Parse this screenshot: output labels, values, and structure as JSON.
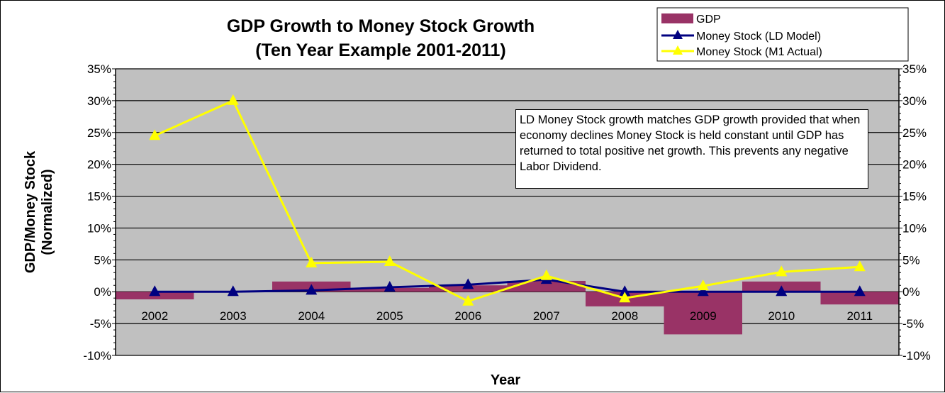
{
  "chart_data": {
    "type": "bar",
    "title_lines": [
      "GDP Growth to Money Stock Growth",
      "(Ten Year Example 2001-2011)"
    ],
    "xlabel": "Year",
    "ylabel_lines": [
      "GDP/Money Stock",
      "(Normalized)"
    ],
    "ylim": [
      -10,
      35
    ],
    "yticks": [
      "-10%",
      "-5%",
      "0%",
      "5%",
      "10%",
      "15%",
      "20%",
      "25%",
      "30%",
      "35%"
    ],
    "ytick_values": [
      -10,
      -5,
      0,
      5,
      10,
      15,
      20,
      25,
      30,
      35
    ],
    "categories": [
      "2002",
      "2003",
      "2004",
      "2005",
      "2006",
      "2007",
      "2008",
      "2009",
      "2010",
      "2011"
    ],
    "grid": true,
    "legend_position": "top-right",
    "series": [
      {
        "name": "GDP",
        "kind": "bar",
        "color": "#993366",
        "values": [
          -1.2,
          0,
          1.6,
          0.6,
          1.0,
          1.7,
          -2.3,
          -6.7,
          1.6,
          -2.0
        ]
      },
      {
        "name": "Money Stock (LD Model)",
        "kind": "line",
        "color": "#000080",
        "values": [
          0,
          0,
          0.2,
          0.7,
          1.1,
          1.9,
          0,
          0,
          0,
          0
        ]
      },
      {
        "name": "Money Stock (M1 Actual)",
        "kind": "line",
        "color": "#FFFF00",
        "values": [
          24.5,
          30.0,
          4.5,
          4.7,
          -1.5,
          2.5,
          -1.0,
          0.9,
          3.1,
          3.9
        ]
      }
    ],
    "annotation": "LD Money Stock growth matches GDP growth provided that when economy declines Money Stock is held constant until GDP has returned to total positive net growth. This prevents any negative Labor Dividend."
  },
  "colors": {
    "plot_background": "#C0C0C0",
    "gridline": "#000000"
  }
}
